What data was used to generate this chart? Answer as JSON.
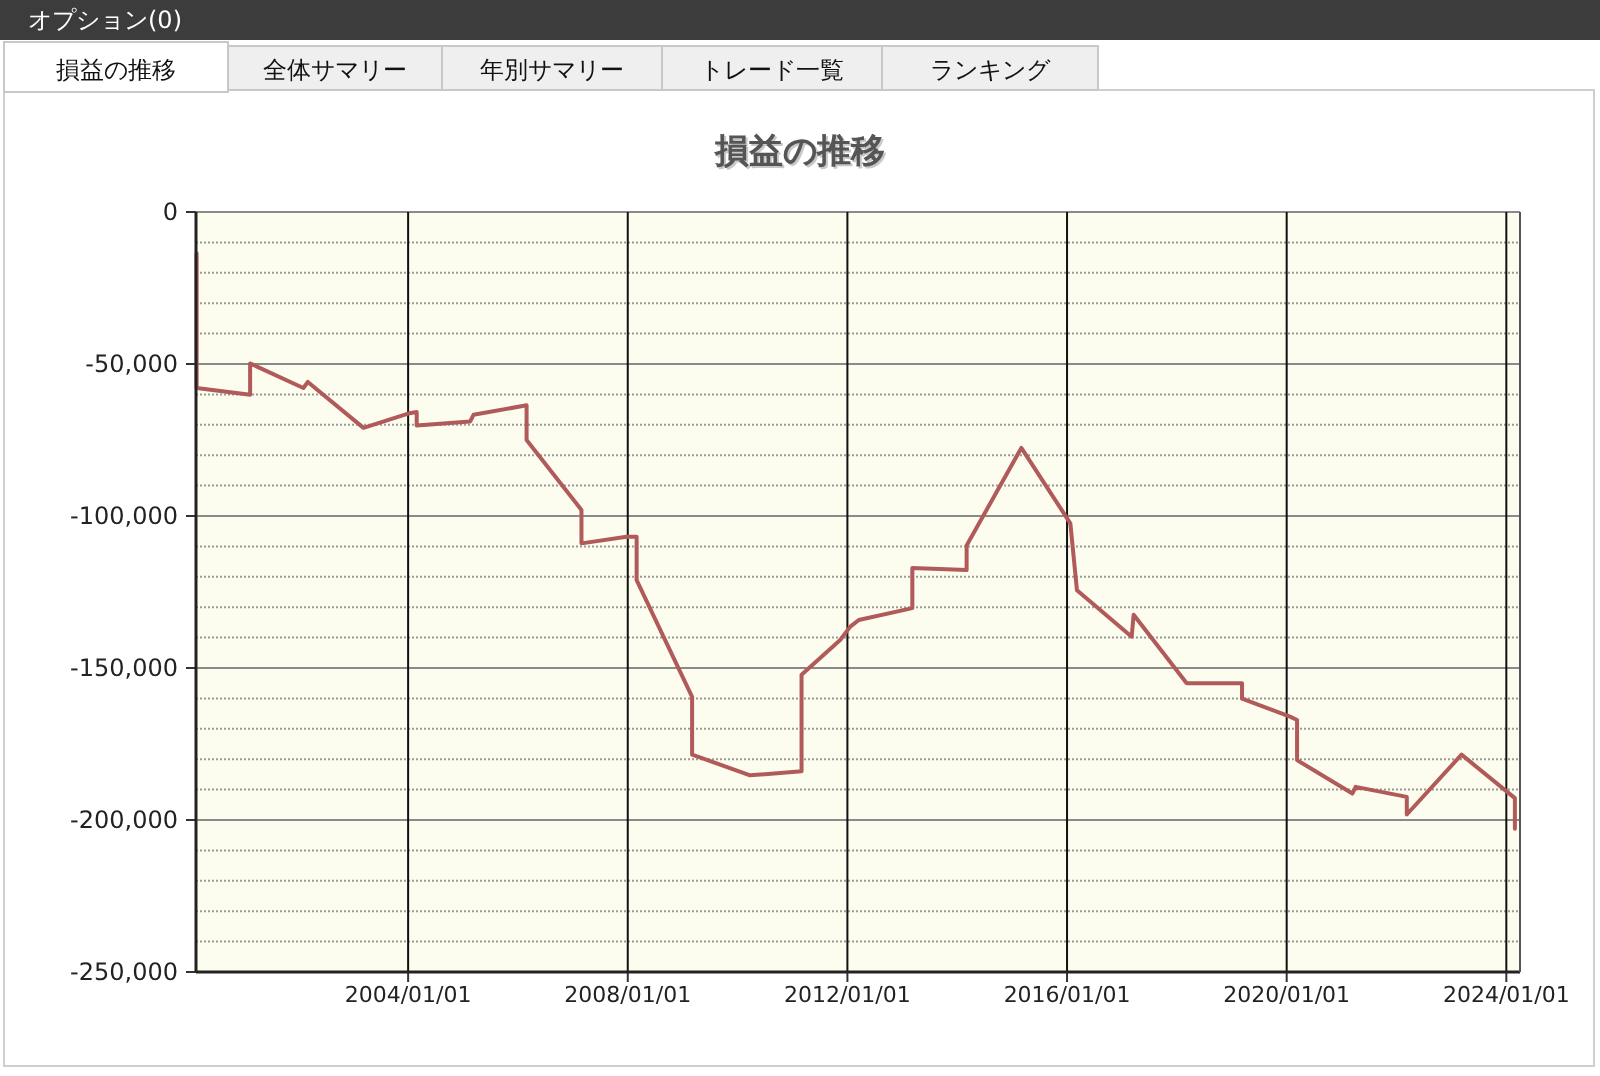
{
  "chart_data": {
    "type": "line",
    "title": "損益の推移",
    "annotations": [
      "オプション(0)",
      "損益の推移",
      "全体サマリー",
      "年別サマリー",
      "トレード一覧",
      "ランキング"
    ],
    "x": [
      "2000-02-24",
      "2000-02-24",
      "2001-02-14",
      "2001-02-14",
      "2002-02-03",
      "2002-03-05",
      "2003-03-10",
      "2004-01-01",
      "2004-02-27",
      "2004-02-27",
      "2005-02-17",
      "2005-03-11",
      "2006-02-27",
      "2006-02-27",
      "2007-02-27",
      "2007-02-27",
      "2007-12-24",
      "2008-02-29",
      "2008-02-29",
      "2009-03-04",
      "2009-03-04",
      "2010-03-25",
      "2011-03-02",
      "2011-03-02",
      "2011-11-14",
      "2012-01-20",
      "2012-03-17",
      "2013-03-08",
      "2013-03-08",
      "2014-03-04",
      "2014-03-04",
      "2015-03-03",
      "2016-01-23",
      "2016-03-07",
      "2017-03-06",
      "2017-03-19",
      "2018-03-07",
      "2019-03-10",
      "2019-03-10",
      "2020-01-23",
      "2020-03-10",
      "2020-03-10",
      "2021-03-13",
      "2021-04-04",
      "2022-03-10",
      "2022-03-10",
      "2023-03-09",
      "2024-02-27",
      "2024-02-27"
    ],
    "series": [
      {
        "color": "#b05a5a",
        "values": [
          -13600,
          -57900,
          -60100,
          -49800,
          -57900,
          -55900,
          -71000,
          -66300,
          -65800,
          -70200,
          -68900,
          -66700,
          -63600,
          -75000,
          -98000,
          -109000,
          -106800,
          -106800,
          -121100,
          -159500,
          -178500,
          -185300,
          -184000,
          -152200,
          -140800,
          -136400,
          -134200,
          -130300,
          -117100,
          -117800,
          -109700,
          -77600,
          -102400,
          -124400,
          -139700,
          -132500,
          -155000,
          -155000,
          -160100,
          -166000,
          -167100,
          -180300,
          -191300,
          -189100,
          -192400,
          -198200,
          -178500,
          -192800,
          -202900
        ]
      }
    ],
    "xlim": [
      "2000-02-20",
      "2024-04-01"
    ],
    "xticks": [
      {
        "value": "2004-01-01",
        "label": "2004/01/01"
      },
      {
        "value": "2008-01-01",
        "label": "2008/01/01"
      },
      {
        "value": "2012-01-01",
        "label": "2012/01/01"
      },
      {
        "value": "2016-01-01",
        "label": "2016/01/01"
      },
      {
        "value": "2020-01-01",
        "label": "2020/01/01"
      },
      {
        "value": "2024-01-01",
        "label": "2024/01/01"
      }
    ],
    "ylim": [
      -250000,
      0
    ],
    "yticks": [
      {
        "value": 0,
        "label": "0"
      },
      {
        "value": -10000,
        "label": null
      },
      {
        "value": -20000,
        "label": null
      },
      {
        "value": -30000,
        "label": null
      },
      {
        "value": -40000,
        "label": null
      },
      {
        "value": -50000,
        "label": "-50,000"
      },
      {
        "value": -60000,
        "label": null
      },
      {
        "value": -70000,
        "label": null
      },
      {
        "value": -80000,
        "label": null
      },
      {
        "value": -90000,
        "label": null
      },
      {
        "value": -100000,
        "label": "-100,000"
      },
      {
        "value": -110000,
        "label": null
      },
      {
        "value": -120000,
        "label": null
      },
      {
        "value": -130000,
        "label": null
      },
      {
        "value": -140000,
        "label": null
      },
      {
        "value": -150000,
        "label": "-150,000"
      },
      {
        "value": -160000,
        "label": null
      },
      {
        "value": -170000,
        "label": null
      },
      {
        "value": -180000,
        "label": null
      },
      {
        "value": -190000,
        "label": null
      },
      {
        "value": -200000,
        "label": "-200,000"
      },
      {
        "value": -210000,
        "label": null
      },
      {
        "value": -220000,
        "label": null
      },
      {
        "value": -230000,
        "label": null
      },
      {
        "value": -240000,
        "label": null
      },
      {
        "value": -250000,
        "label": "-250,000"
      }
    ],
    "grid": true,
    "marker": "none",
    "line_style": "solid"
  }
}
